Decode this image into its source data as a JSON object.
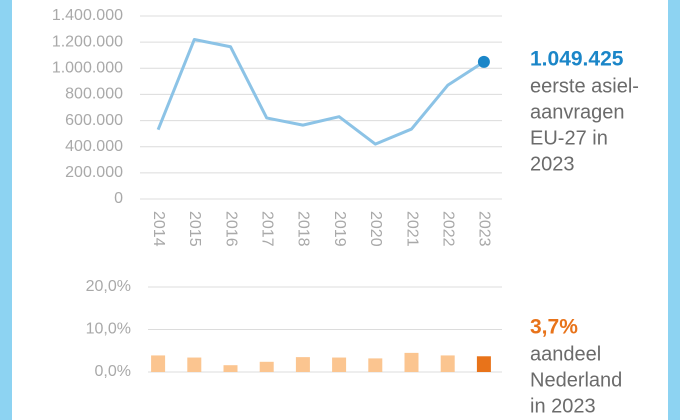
{
  "chart_data": [
    {
      "type": "line",
      "categories": [
        "2014",
        "2015",
        "2016",
        "2017",
        "2018",
        "2019",
        "2020",
        "2021",
        "2022",
        "2023"
      ],
      "values": [
        530000,
        1220000,
        1165000,
        620000,
        565000,
        630000,
        420000,
        535000,
        870000,
        1049425
      ],
      "color": "#8cc3e6",
      "marker_color": "#1b86c8",
      "ylim": [
        0,
        1400000
      ],
      "yticks": [
        0,
        {
          "value": 200000,
          "label": "200.000"
        },
        {
          "value": 400000,
          "label": "400.000"
        },
        {
          "value": 600000,
          "label": "600.000"
        },
        {
          "value": 800000,
          "label": "800.000"
        },
        {
          "value": 1000000,
          "label": "1.000.000"
        },
        {
          "value": 1200000,
          "label": "1.200.000"
        },
        {
          "value": 1400000,
          "label": "1.400.000"
        }
      ],
      "grid": true,
      "annotation_value": "1.049.425",
      "annotation_lines": [
        "eerste asiel-",
        "aanvragen",
        "EU-27 in",
        "2023"
      ]
    },
    {
      "type": "bar",
      "categories": [
        null,
        null,
        null,
        null,
        null,
        null,
        null,
        null,
        null,
        null
      ],
      "values": [
        3.9,
        3.4,
        1.6,
        2.4,
        3.5,
        3.4,
        3.2,
        4.5,
        3.9,
        3.7
      ],
      "colors": [
        "#fbc590",
        "#fbc590",
        "#fbc590",
        "#fbc590",
        "#fbc590",
        "#fbc590",
        "#fbc590",
        "#fbc590",
        "#fbc590",
        "#e8731a"
      ],
      "ylim": [
        0,
        20
      ],
      "yticks": [
        {
          "value": 0,
          "label": "0,0%"
        },
        {
          "value": 10,
          "label": "10,0%"
        },
        {
          "value": 20,
          "label": "20,0%"
        }
      ],
      "grid": true,
      "annotation_value": "3,7%",
      "annotation_lines": [
        "aandeel",
        "Nederland",
        "in 2023"
      ]
    }
  ]
}
